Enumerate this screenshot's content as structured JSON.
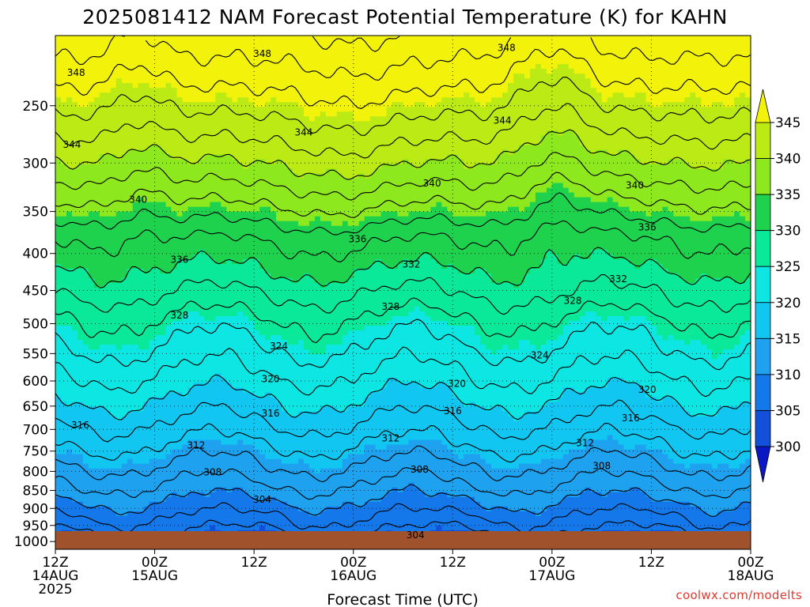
{
  "chart_data": {
    "type": "heatmap",
    "title": "2025081412 NAM Forecast Potential Temperature (K) for KAHN",
    "xlabel": "Forecast Time (UTC)",
    "ylabel": "",
    "credit": "coolwx.com/modelts",
    "x_range_hours": [
      0,
      84
    ],
    "y_axis": {
      "scale": "log-pressure",
      "units": "hPa",
      "range": [
        1025,
        200
      ]
    },
    "x_ticks": [
      {
        "hour": 0,
        "l1": "12Z",
        "l2": "14AUG",
        "l3": "2025"
      },
      {
        "hour": 12,
        "l1": "00Z",
        "l2": "15AUG",
        "l3": ""
      },
      {
        "hour": 24,
        "l1": "12Z",
        "l2": "",
        "l3": ""
      },
      {
        "hour": 36,
        "l1": "00Z",
        "l2": "16AUG",
        "l3": ""
      },
      {
        "hour": 48,
        "l1": "12Z",
        "l2": "",
        "l3": ""
      },
      {
        "hour": 60,
        "l1": "00Z",
        "l2": "17AUG",
        "l3": ""
      },
      {
        "hour": 72,
        "l1": "12Z",
        "l2": "",
        "l3": ""
      },
      {
        "hour": 84,
        "l1": "00Z",
        "l2": "18AUG",
        "l3": ""
      }
    ],
    "y_ticks": [
      "250",
      "300",
      "350",
      "400",
      "450",
      "500",
      "550",
      "600",
      "650",
      "700",
      "750",
      "800",
      "850",
      "900",
      "950",
      "1000"
    ],
    "grid": true,
    "colorbar": {
      "ticks": [
        "345",
        "340",
        "335",
        "330",
        "325",
        "320",
        "315",
        "310",
        "305",
        "300"
      ],
      "levels": [
        300,
        305,
        310,
        315,
        320,
        325,
        330,
        335,
        340,
        345
      ],
      "colors": [
        "#0a18c4",
        "#1250dc",
        "#1478ea",
        "#1ea2f0",
        "#12c6f2",
        "#0de6e2",
        "#0ae89a",
        "#1ed24e",
        "#8ee81e",
        "#bcea14",
        "#f2f20a"
      ],
      "extend": "both"
    },
    "contour_labels": [
      {
        "text": "348",
        "hour": 2.5,
        "p": 225
      },
      {
        "text": "348",
        "hour": 25,
        "p": 212
      },
      {
        "text": "348",
        "hour": 54.5,
        "p": 208
      },
      {
        "text": "344",
        "hour": 2,
        "p": 283
      },
      {
        "text": "344",
        "hour": 30,
        "p": 272
      },
      {
        "text": "344",
        "hour": 54,
        "p": 262
      },
      {
        "text": "340",
        "hour": 10,
        "p": 337
      },
      {
        "text": "340",
        "hour": 45.5,
        "p": 320
      },
      {
        "text": "340",
        "hour": 70,
        "p": 322
      },
      {
        "text": "336",
        "hour": 15,
        "p": 408
      },
      {
        "text": "336",
        "hour": 36.5,
        "p": 382
      },
      {
        "text": "336",
        "hour": 71.5,
        "p": 368
      },
      {
        "text": "332",
        "hour": 43,
        "p": 414
      },
      {
        "text": "332",
        "hour": 68,
        "p": 434
      },
      {
        "text": "328",
        "hour": 15,
        "p": 487
      },
      {
        "text": "328",
        "hour": 40.5,
        "p": 474
      },
      {
        "text": "328",
        "hour": 62.5,
        "p": 465
      },
      {
        "text": "324",
        "hour": 27,
        "p": 537
      },
      {
        "text": "324",
        "hour": 58.5,
        "p": 553
      },
      {
        "text": "320",
        "hour": 26,
        "p": 596
      },
      {
        "text": "320",
        "hour": 48.5,
        "p": 605
      },
      {
        "text": "320",
        "hour": 71.5,
        "p": 617
      },
      {
        "text": "316",
        "hour": 3,
        "p": 691
      },
      {
        "text": "316",
        "hour": 26,
        "p": 665
      },
      {
        "text": "316",
        "hour": 48,
        "p": 660
      },
      {
        "text": "316",
        "hour": 69.5,
        "p": 675
      },
      {
        "text": "312",
        "hour": 17,
        "p": 736
      },
      {
        "text": "312",
        "hour": 40.5,
        "p": 720
      },
      {
        "text": "312",
        "hour": 64,
        "p": 731
      },
      {
        "text": "308",
        "hour": 19,
        "p": 802
      },
      {
        "text": "308",
        "hour": 44,
        "p": 795
      },
      {
        "text": "308",
        "hour": 66,
        "p": 786
      },
      {
        "text": "304",
        "hour": 25,
        "p": 875
      },
      {
        "text": "304",
        "hour": 43.5,
        "p": 980
      }
    ]
  }
}
